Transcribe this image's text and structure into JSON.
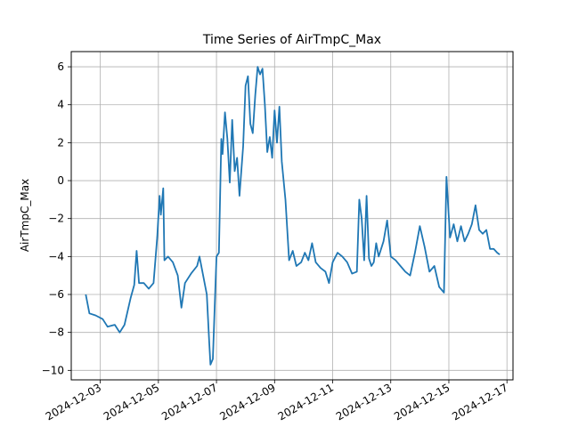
{
  "chart_data": {
    "type": "line",
    "title": "Time Series of AirTmpC_Max",
    "xlabel": "",
    "ylabel": "AirTmpC_Max",
    "grid": true,
    "legend": "none",
    "line_color": "#1f77b4",
    "xlim": [
      "2024-12-02 00:00",
      "2024-12-17 05:00"
    ],
    "ylim": [
      -10.5,
      6.8
    ],
    "x_ticks": [
      "2024-12-03",
      "2024-12-05",
      "2024-12-07",
      "2024-12-09",
      "2024-12-11",
      "2024-12-13",
      "2024-12-15",
      "2024-12-17"
    ],
    "y_ticks": [
      6,
      4,
      2,
      0,
      -2,
      -4,
      -6,
      -8,
      -10
    ],
    "series": [
      {
        "points": [
          [
            "2024-12-02 12:00",
            -6.0
          ],
          [
            "2024-12-02 15:00",
            -7.0
          ],
          [
            "2024-12-02 20:00",
            -7.1
          ],
          [
            "2024-12-03 02:00",
            -7.3
          ],
          [
            "2024-12-03 06:00",
            -7.7
          ],
          [
            "2024-12-03 12:00",
            -7.6
          ],
          [
            "2024-12-03 16:00",
            -8.0
          ],
          [
            "2024-12-03 20:00",
            -7.6
          ],
          [
            "2024-12-04 01:00",
            -6.2
          ],
          [
            "2024-12-04 04:00",
            -5.5
          ],
          [
            "2024-12-04 06:00",
            -3.7
          ],
          [
            "2024-12-04 08:00",
            -5.4
          ],
          [
            "2024-12-04 12:00",
            -5.4
          ],
          [
            "2024-12-04 16:00",
            -5.7
          ],
          [
            "2024-12-04 20:00",
            -5.4
          ],
          [
            "2024-12-04 23:00",
            -3.0
          ],
          [
            "2024-12-05 01:00",
            -0.8
          ],
          [
            "2024-12-05 02:00",
            -1.8
          ],
          [
            "2024-12-05 04:00",
            -0.4
          ],
          [
            "2024-12-05 05:00",
            -4.2
          ],
          [
            "2024-12-05 08:00",
            -4.0
          ],
          [
            "2024-12-05 12:00",
            -4.3
          ],
          [
            "2024-12-05 16:00",
            -5.0
          ],
          [
            "2024-12-05 19:00",
            -6.7
          ],
          [
            "2024-12-05 22:00",
            -5.4
          ],
          [
            "2024-12-06 03:00",
            -4.9
          ],
          [
            "2024-12-06 08:00",
            -4.5
          ],
          [
            "2024-12-06 10:00",
            -4.0
          ],
          [
            "2024-12-06 13:00",
            -5.0
          ],
          [
            "2024-12-06 16:00",
            -6.0
          ],
          [
            "2024-12-06 18:00",
            -8.5
          ],
          [
            "2024-12-06 19:00",
            -9.7
          ],
          [
            "2024-12-06 21:00",
            -9.4
          ],
          [
            "2024-12-06 23:00",
            -5.8
          ],
          [
            "2024-12-07 00:00",
            -4.0
          ],
          [
            "2024-12-07 02:00",
            -3.8
          ],
          [
            "2024-12-07 04:00",
            2.2
          ],
          [
            "2024-12-07 05:00",
            1.4
          ],
          [
            "2024-12-07 07:00",
            3.6
          ],
          [
            "2024-12-07 09:00",
            2.2
          ],
          [
            "2024-12-07 11:00",
            -0.1
          ],
          [
            "2024-12-07 13:00",
            3.2
          ],
          [
            "2024-12-07 15:00",
            0.5
          ],
          [
            "2024-12-07 17:00",
            1.2
          ],
          [
            "2024-12-07 19:00",
            -0.8
          ],
          [
            "2024-12-07 22:00",
            1.8
          ],
          [
            "2024-12-08 00:00",
            5.0
          ],
          [
            "2024-12-08 02:00",
            5.5
          ],
          [
            "2024-12-08 04:00",
            3.0
          ],
          [
            "2024-12-08 06:00",
            2.5
          ],
          [
            "2024-12-08 08:00",
            4.5
          ],
          [
            "2024-12-08 10:00",
            6.0
          ],
          [
            "2024-12-08 12:00",
            5.6
          ],
          [
            "2024-12-08 14:00",
            5.9
          ],
          [
            "2024-12-08 16:00",
            4.0
          ],
          [
            "2024-12-08 18:00",
            1.5
          ],
          [
            "2024-12-08 20:00",
            2.3
          ],
          [
            "2024-12-08 22:00",
            1.2
          ],
          [
            "2024-12-09 00:00",
            3.7
          ],
          [
            "2024-12-09 02:00",
            2.0
          ],
          [
            "2024-12-09 04:00",
            3.9
          ],
          [
            "2024-12-09 06:00",
            1.0
          ],
          [
            "2024-12-09 09:00",
            -1.0
          ],
          [
            "2024-12-09 12:00",
            -4.2
          ],
          [
            "2024-12-09 15:00",
            -3.7
          ],
          [
            "2024-12-09 18:00",
            -4.5
          ],
          [
            "2024-12-09 22:00",
            -4.3
          ],
          [
            "2024-12-10 01:00",
            -3.8
          ],
          [
            "2024-12-10 04:00",
            -4.2
          ],
          [
            "2024-12-10 07:00",
            -3.3
          ],
          [
            "2024-12-10 10:00",
            -4.3
          ],
          [
            "2024-12-10 14:00",
            -4.6
          ],
          [
            "2024-12-10 18:00",
            -4.8
          ],
          [
            "2024-12-10 21:00",
            -5.4
          ],
          [
            "2024-12-11 00:00",
            -4.3
          ],
          [
            "2024-12-11 04:00",
            -3.8
          ],
          [
            "2024-12-11 08:00",
            -4.0
          ],
          [
            "2024-12-11 12:00",
            -4.3
          ],
          [
            "2024-12-11 16:00",
            -4.9
          ],
          [
            "2024-12-11 20:00",
            -4.8
          ],
          [
            "2024-12-11 22:00",
            -1.0
          ],
          [
            "2024-12-12 00:00",
            -2.0
          ],
          [
            "2024-12-12 02:00",
            -4.2
          ],
          [
            "2024-12-12 04:00",
            -0.8
          ],
          [
            "2024-12-12 06:00",
            -4.1
          ],
          [
            "2024-12-12 08:00",
            -4.5
          ],
          [
            "2024-12-12 10:00",
            -4.3
          ],
          [
            "2024-12-12 12:00",
            -3.3
          ],
          [
            "2024-12-12 14:00",
            -4.0
          ],
          [
            "2024-12-12 18:00",
            -3.2
          ],
          [
            "2024-12-12 21:00",
            -2.1
          ],
          [
            "2024-12-13 00:00",
            -4.0
          ],
          [
            "2024-12-13 04:00",
            -4.2
          ],
          [
            "2024-12-13 08:00",
            -4.5
          ],
          [
            "2024-12-13 12:00",
            -4.8
          ],
          [
            "2024-12-13 16:00",
            -5.0
          ],
          [
            "2024-12-13 20:00",
            -3.8
          ],
          [
            "2024-12-14 00:00",
            -2.4
          ],
          [
            "2024-12-14 04:00",
            -3.5
          ],
          [
            "2024-12-14 08:00",
            -4.8
          ],
          [
            "2024-12-14 12:00",
            -4.5
          ],
          [
            "2024-12-14 16:00",
            -5.6
          ],
          [
            "2024-12-14 20:00",
            -5.9
          ],
          [
            "2024-12-14 22:00",
            0.2
          ],
          [
            "2024-12-15 01:00",
            -3.0
          ],
          [
            "2024-12-15 04:00",
            -2.3
          ],
          [
            "2024-12-15 07:00",
            -3.2
          ],
          [
            "2024-12-15 10:00",
            -2.4
          ],
          [
            "2024-12-15 13:00",
            -3.2
          ],
          [
            "2024-12-15 16:00",
            -2.8
          ],
          [
            "2024-12-15 19:00",
            -2.3
          ],
          [
            "2024-12-15 22:00",
            -1.3
          ],
          [
            "2024-12-16 01:00",
            -2.6
          ],
          [
            "2024-12-16 04:00",
            -2.8
          ],
          [
            "2024-12-16 07:00",
            -2.6
          ],
          [
            "2024-12-16 10:00",
            -3.6
          ],
          [
            "2024-12-16 13:00",
            -3.6
          ],
          [
            "2024-12-16 16:00",
            -3.8
          ],
          [
            "2024-12-16 18:00",
            -3.9
          ]
        ]
      }
    ]
  }
}
